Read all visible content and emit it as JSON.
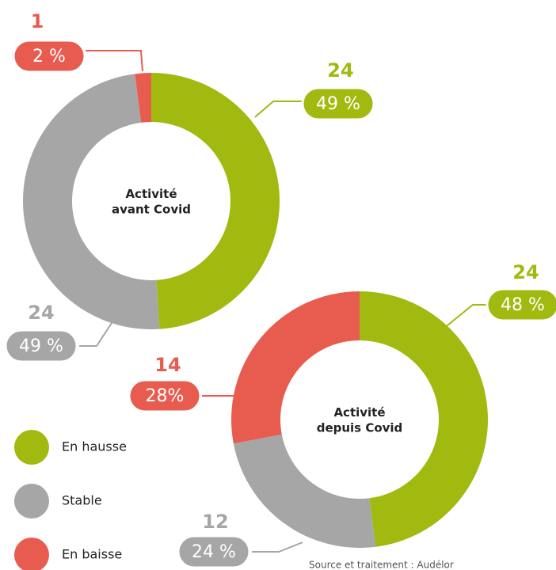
{
  "chart_data": [
    {
      "type": "pie",
      "title": "Activité avant Covid",
      "categories": [
        "En hausse",
        "Stable",
        "En baisse"
      ],
      "values": [
        24,
        24,
        1
      ],
      "percents": [
        49,
        49,
        2
      ],
      "percent_labels": [
        "49 %",
        "49 %",
        "2 %"
      ],
      "colors": [
        "#a2b90f",
        "#a6a6a6",
        "#e85c50"
      ]
    },
    {
      "type": "pie",
      "title": "Activité depuis Covid",
      "categories": [
        "En hausse",
        "Stable",
        "En baisse"
      ],
      "values": [
        24,
        12,
        14
      ],
      "percents": [
        48,
        24,
        28
      ],
      "percent_labels": [
        "48 %",
        "24 %",
        "28%"
      ],
      "colors": [
        "#a2b90f",
        "#a6a6a6",
        "#e85c50"
      ],
      "source": "Source et traitement : Audélor"
    }
  ]
}
